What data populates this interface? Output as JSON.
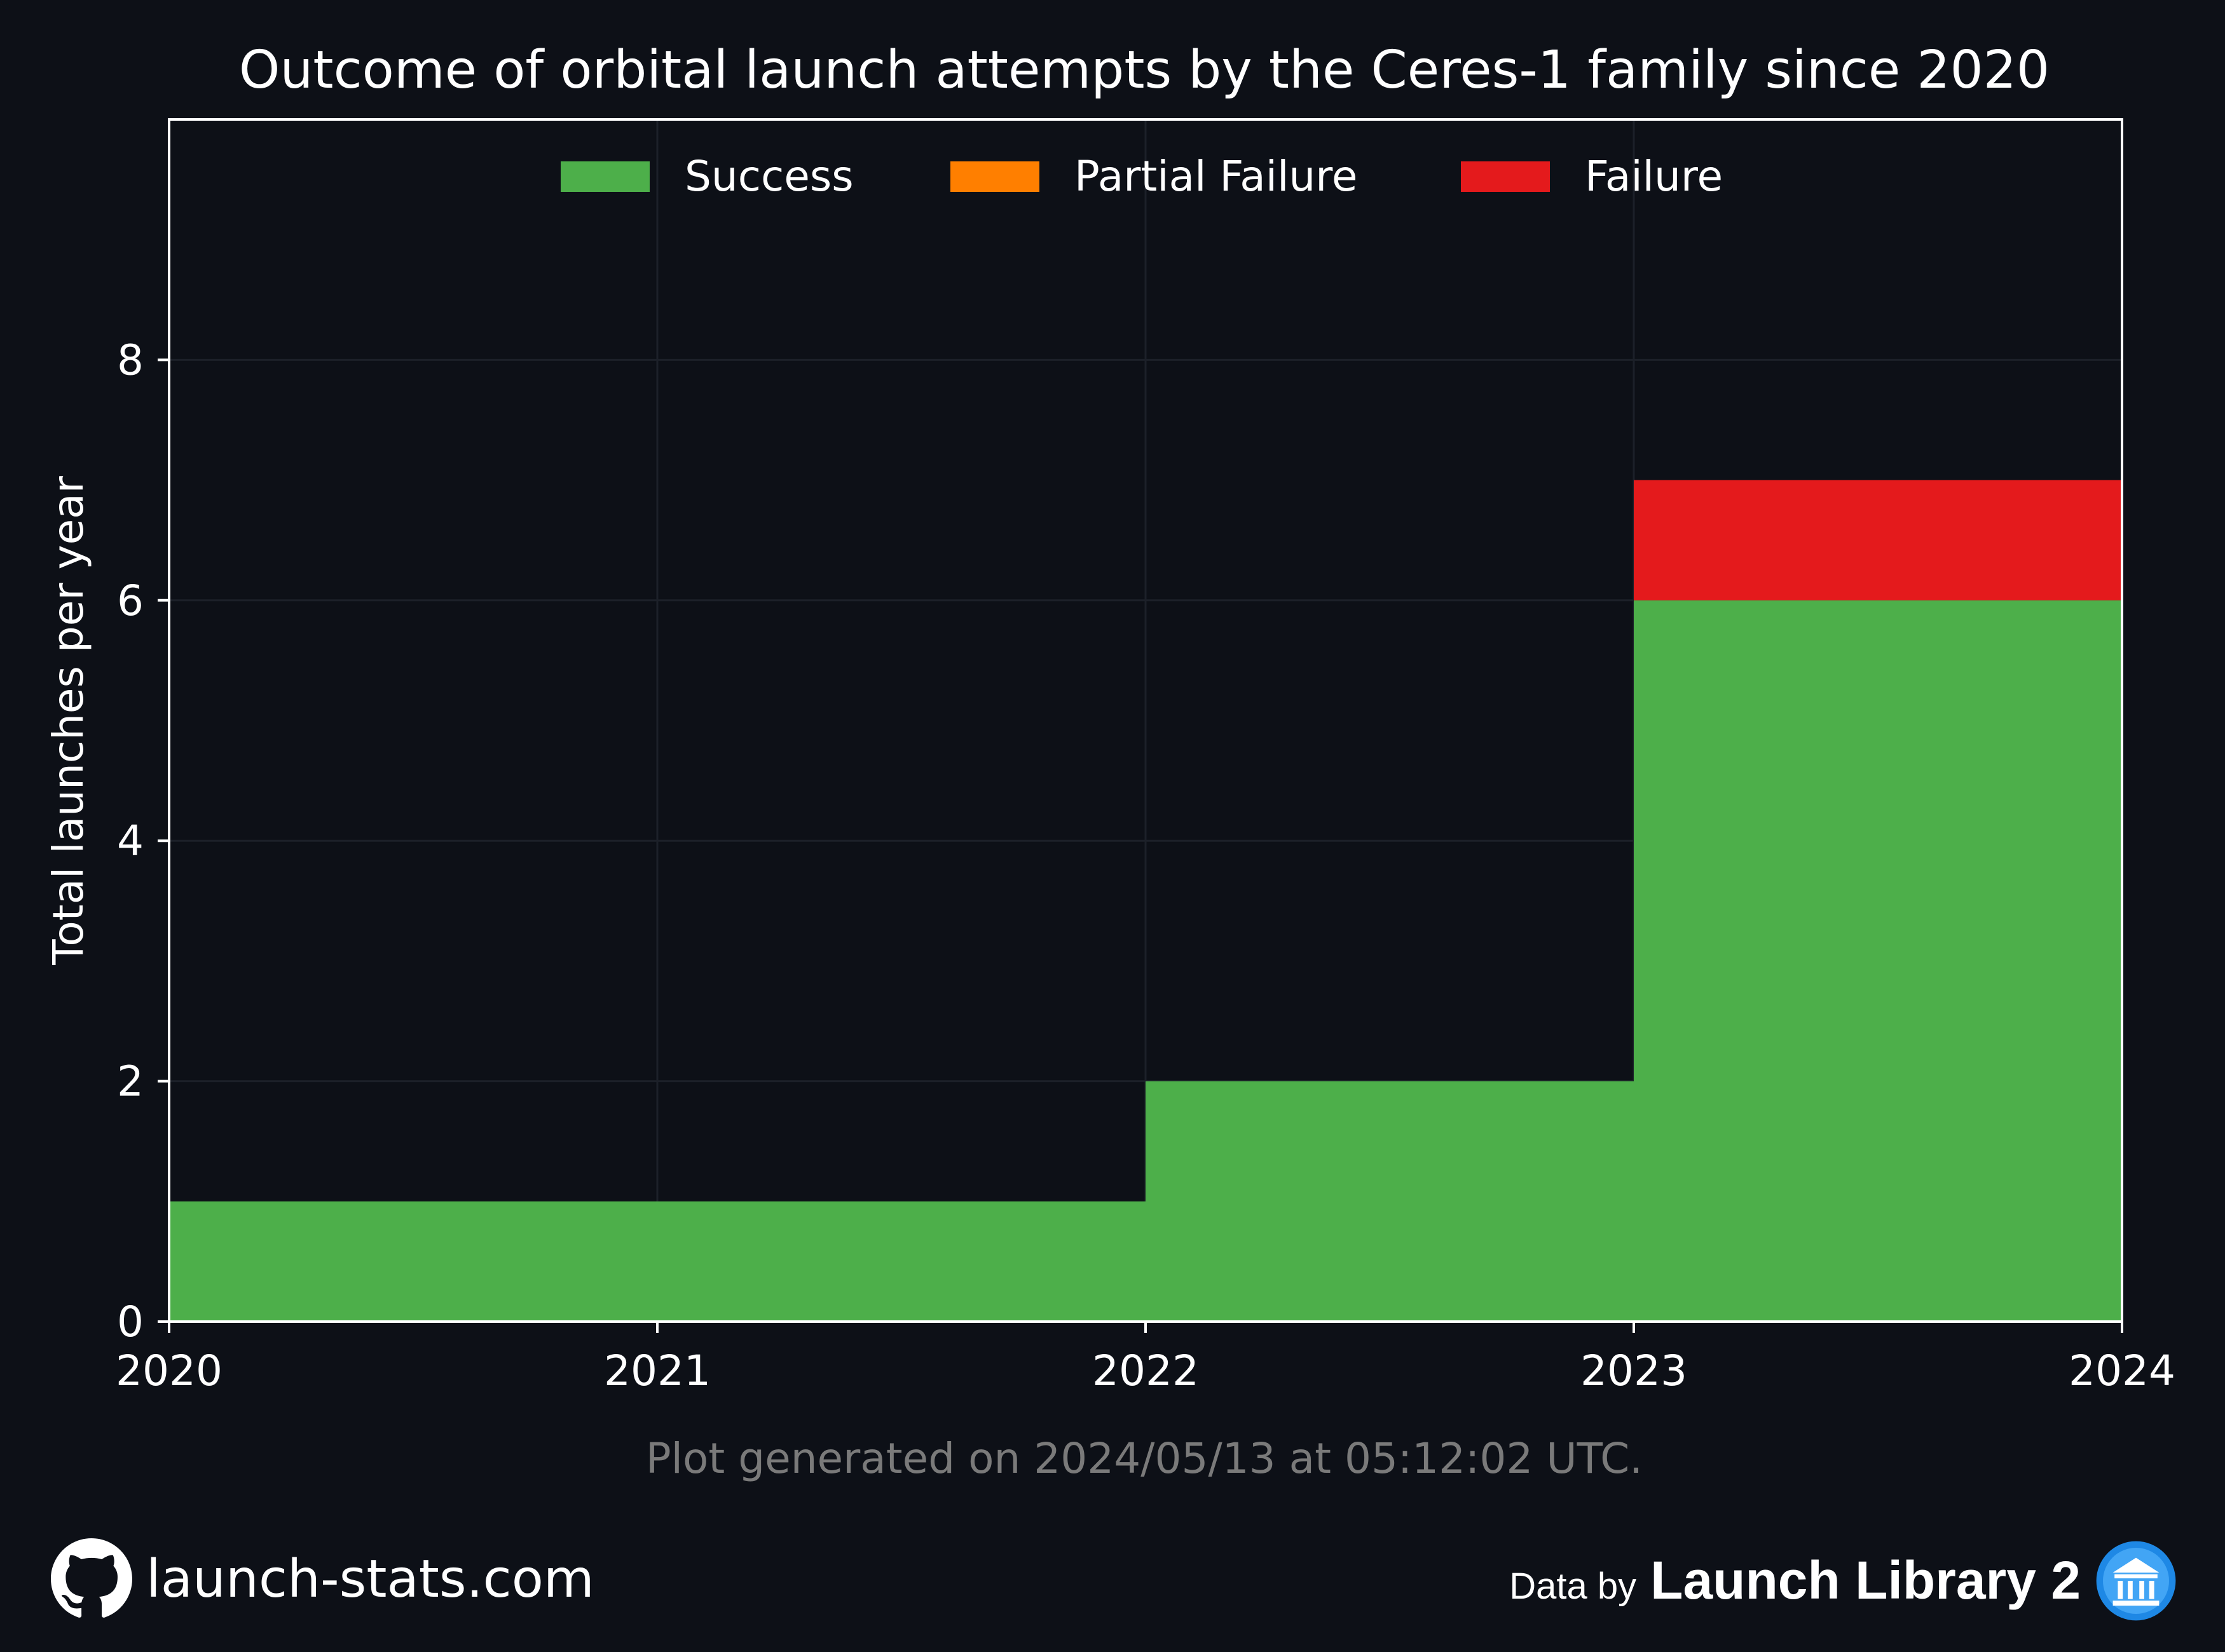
{
  "chart_data": {
    "type": "area",
    "step": true,
    "title": "Outcome of orbital launch attempts by the Ceres-1 family since 2020",
    "xlabel": "",
    "ylabel": "Total launches per year",
    "x_ticks": [
      "2020",
      "2021",
      "2022",
      "2023",
      "2024"
    ],
    "y_ticks": [
      "0",
      "2",
      "4",
      "6",
      "8"
    ],
    "xlim": [
      2020,
      2024
    ],
    "ylim": [
      0,
      10
    ],
    "stacked": true,
    "legend_position": "top-center",
    "grid": true,
    "years": [
      2020,
      2021,
      2022,
      2023
    ],
    "series": [
      {
        "name": "Success",
        "color": "#4daf4a",
        "values": [
          1,
          1,
          2,
          6
        ]
      },
      {
        "name": "Partial Failure",
        "color": "#ff7f00",
        "values": [
          0,
          0,
          0,
          0
        ]
      },
      {
        "name": "Failure",
        "color": "#e41a1c",
        "values": [
          0,
          0,
          0,
          1
        ]
      }
    ]
  },
  "caption": "Plot generated on 2024/05/13 at 05:12:02 UTC.",
  "footer": {
    "site": "launch-stats.com",
    "site_icon": "github-icon",
    "data_by": "Data by",
    "provider": "Launch Library 2",
    "provider_icon": "launch-library-icon"
  },
  "colors": {
    "background": "#0d1017",
    "grid": "#1c2029",
    "text": "#ffffff",
    "caption": "#7a7a7a"
  }
}
